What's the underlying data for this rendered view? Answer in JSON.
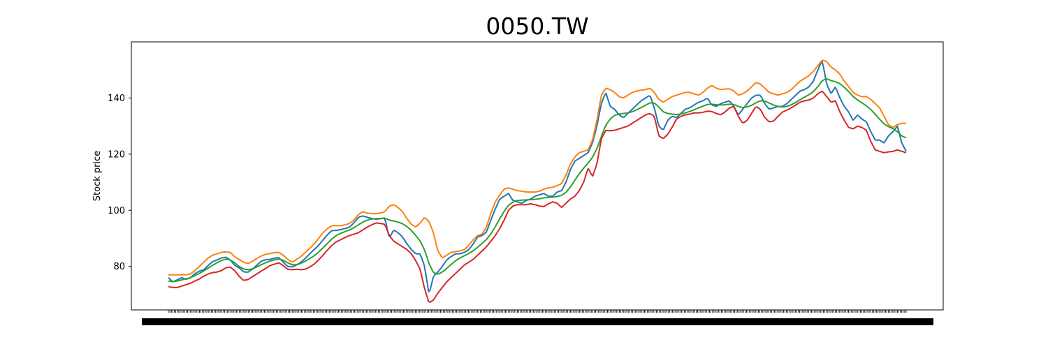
{
  "chart_data": {
    "type": "line",
    "title": "0050.TW",
    "xlabel": "",
    "ylabel": "Stock price",
    "ylim": [
      64.5,
      160
    ],
    "y_ticks": [
      80,
      100,
      120,
      140
    ],
    "x_tick_labels_note": "dense, overlapping date labels (unreadable)",
    "legend": "none",
    "grid": false,
    "n_points": 500,
    "series": [
      {
        "color": "#1f77b4",
        "values": [
          76.0,
          74.5,
          75.2,
          76.0,
          75.4,
          76.0,
          77.4,
          78.3,
          78.8,
          80.3,
          81.7,
          82.3,
          83.0,
          83.3,
          82.3,
          80.4,
          79.5,
          78.1,
          77.9,
          79.0,
          80.4,
          81.8,
          82.4,
          82.5,
          82.9,
          83.2,
          81.5,
          80.0,
          79.8,
          80.5,
          81.5,
          82.9,
          84.5,
          86.0,
          87.5,
          89.4,
          91.3,
          92.8,
          92.8,
          93.1,
          93.5,
          94.0,
          95.5,
          97.5,
          98.0,
          97.5,
          97.1,
          96.8,
          97.0,
          97.3,
          90.0,
          93.0,
          92.0,
          90.5,
          88.0,
          86.0,
          84.5,
          84.5,
          80.0,
          70.0,
          76.5,
          78.0,
          80.0,
          82.3,
          83.5,
          84.5,
          84.5,
          85.0,
          86.0,
          88.0,
          90.5,
          91.0,
          92.3,
          96.5,
          100.5,
          104.0,
          105.0,
          106.0,
          103.5,
          103.0,
          102.5,
          103.5,
          104.0,
          105.0,
          105.5,
          106.0,
          105.0,
          105.0,
          106.5,
          107.0,
          110.0,
          114.5,
          117.5,
          118.5,
          119.5,
          120.5,
          124.0,
          130.0,
          138.0,
          142.0,
          137.0,
          136.0,
          134.0,
          133.0,
          134.5,
          136.0,
          137.5,
          139.0,
          140.0,
          141.0,
          136.5,
          130.0,
          128.5,
          132.0,
          133.5,
          133.0,
          134.5,
          136.0,
          136.5,
          137.5,
          138.5,
          139.0,
          140.0,
          137.5,
          137.0,
          138.0,
          138.5,
          139.0,
          137.0,
          134.0,
          136.0,
          138.0,
          140.0,
          141.0,
          141.0,
          138.0,
          136.0,
          136.5,
          137.0,
          137.0,
          138.0,
          139.5,
          141.0,
          142.5,
          143.0,
          144.0,
          146.0,
          150.0,
          153.5,
          145.0,
          141.5,
          144.0,
          140.0,
          137.0,
          135.0,
          132.0,
          134.0,
          132.5,
          131.5,
          128.0,
          125.0,
          125.0,
          124.0,
          126.5,
          128.0,
          130.0,
          124.0,
          121.0
        ]
      },
      {
        "color": "#ff7f0e",
        "values": [
          77.0,
          77.0,
          77.0,
          77.0,
          77.0,
          77.3,
          78.5,
          80.0,
          81.5,
          83.0,
          84.0,
          84.5,
          85.0,
          85.2,
          85.0,
          83.5,
          82.5,
          81.5,
          81.0,
          81.8,
          82.8,
          83.7,
          84.3,
          84.6,
          84.9,
          85.0,
          84.0,
          82.5,
          81.5,
          82.5,
          83.5,
          85.0,
          86.5,
          88.0,
          90.0,
          92.0,
          93.5,
          94.5,
          94.5,
          94.5,
          94.8,
          95.3,
          96.5,
          98.5,
          99.5,
          99.0,
          98.8,
          98.8,
          99.0,
          99.5,
          101.5,
          102.0,
          101.0,
          99.5,
          97.0,
          95.0,
          94.0,
          95.5,
          97.5,
          96.0,
          92.0,
          85.5,
          83.0,
          84.0,
          85.0,
          85.3,
          85.5,
          86.0,
          87.5,
          89.5,
          91.0,
          91.5,
          94.0,
          99.0,
          103.0,
          105.5,
          107.5,
          108.0,
          107.5,
          107.0,
          106.8,
          106.5,
          106.5,
          106.5,
          106.8,
          107.5,
          108.0,
          108.2,
          108.8,
          109.5,
          112.5,
          116.5,
          119.0,
          120.5,
          121.0,
          121.5,
          125.0,
          132.0,
          141.0,
          143.5,
          143.0,
          142.0,
          140.5,
          140.0,
          141.0,
          142.0,
          142.5,
          142.8,
          143.0,
          143.5,
          142.0,
          139.5,
          138.5,
          139.5,
          140.5,
          141.0,
          141.5,
          142.0,
          142.0,
          141.5,
          141.0,
          142.0,
          143.5,
          144.5,
          143.5,
          143.0,
          143.2,
          143.3,
          142.5,
          141.0,
          141.5,
          142.5,
          144.0,
          145.5,
          145.0,
          143.5,
          142.0,
          141.5,
          141.0,
          141.5,
          142.0,
          143.0,
          144.5,
          146.0,
          147.0,
          148.0,
          149.5,
          151.5,
          153.5,
          153.0,
          151.0,
          150.0,
          148.5,
          146.0,
          144.0,
          142.0,
          141.0,
          140.5,
          140.5,
          139.5,
          138.0,
          136.5,
          133.5,
          130.5,
          129.5,
          130.5,
          131.0,
          131.0
        ]
      },
      {
        "color": "#2ca02c",
        "values": [
          74.8,
          74.6,
          74.8,
          75.2,
          75.6,
          76.0,
          76.7,
          77.5,
          78.4,
          79.4,
          80.4,
          81.3,
          82.1,
          82.6,
          82.3,
          81.3,
          80.0,
          79.1,
          78.8,
          79.1,
          79.8,
          80.6,
          81.3,
          81.9,
          82.3,
          82.6,
          82.2,
          81.3,
          80.6,
          80.6,
          81.1,
          81.9,
          82.8,
          83.8,
          85.1,
          86.6,
          88.2,
          89.8,
          91.0,
          91.8,
          92.4,
          93.0,
          93.8,
          94.8,
          95.8,
          96.5,
          96.9,
          97.0,
          97.1,
          97.2,
          96.5,
          96.2,
          95.8,
          95.2,
          94.2,
          92.8,
          91.0,
          89.0,
          85.8,
          81.0,
          77.8,
          77.2,
          78.0,
          79.3,
          80.7,
          82.0,
          83.0,
          83.8,
          84.6,
          85.6,
          86.8,
          88.2,
          89.6,
          91.6,
          94.2,
          97.0,
          99.6,
          101.8,
          102.9,
          103.5,
          103.6,
          103.7,
          103.8,
          103.9,
          104.1,
          104.4,
          104.6,
          104.7,
          104.9,
          105.3,
          106.4,
          108.3,
          110.7,
          113.0,
          115.0,
          116.8,
          118.9,
          122.0,
          126.2,
          130.3,
          132.5,
          133.8,
          134.3,
          134.5,
          134.7,
          135.1,
          135.8,
          136.6,
          137.4,
          138.3,
          138.2,
          136.8,
          135.1,
          134.5,
          134.3,
          134.1,
          134.3,
          134.7,
          135.2,
          135.8,
          136.5,
          137.1,
          137.7,
          137.8,
          137.6,
          137.5,
          137.6,
          137.8,
          137.7,
          137.0,
          136.6,
          136.8,
          137.4,
          138.3,
          139.0,
          138.9,
          138.2,
          137.5,
          137.0,
          136.8,
          137.0,
          137.6,
          138.4,
          139.4,
          140.3,
          141.2,
          142.3,
          144.0,
          146.2,
          146.9,
          146.2,
          145.8,
          145.1,
          143.8,
          142.3,
          140.5,
          139.3,
          138.3,
          137.2,
          135.9,
          134.2,
          132.4,
          130.8,
          129.8,
          129.1,
          128.0,
          126.5,
          125.8
        ]
      },
      {
        "color": "#d62728",
        "values": [
          72.8,
          72.5,
          72.5,
          73.0,
          73.5,
          74.0,
          74.8,
          75.5,
          76.5,
          77.3,
          77.8,
          78.0,
          78.5,
          79.5,
          79.8,
          78.5,
          76.5,
          75.0,
          75.3,
          76.3,
          77.3,
          78.3,
          79.3,
          80.3,
          80.8,
          81.3,
          80.3,
          79.0,
          78.8,
          79.0,
          78.8,
          79.0,
          79.8,
          80.8,
          82.3,
          84.0,
          85.8,
          87.5,
          88.8,
          89.5,
          90.3,
          91.0,
          91.5,
          92.0,
          93.0,
          94.0,
          94.8,
          95.5,
          95.3,
          95.0,
          91.0,
          89.0,
          88.0,
          87.0,
          86.0,
          84.5,
          82.0,
          79.0,
          72.0,
          67.0,
          68.0,
          70.5,
          72.5,
          74.5,
          76.0,
          77.5,
          79.0,
          80.5,
          81.5,
          82.5,
          84.0,
          85.5,
          87.0,
          89.0,
          91.0,
          93.5,
          96.5,
          100.0,
          101.5,
          102.0,
          102.0,
          102.0,
          102.3,
          102.0,
          101.5,
          101.3,
          102.3,
          103.0,
          102.5,
          101.0,
          102.5,
          104.0,
          105.0,
          107.0,
          110.0,
          115.0,
          112.0,
          116.5,
          125.5,
          128.5,
          128.3,
          128.5,
          129.0,
          129.5,
          130.0,
          131.0,
          132.0,
          133.0,
          134.0,
          134.5,
          133.5,
          126.5,
          125.5,
          127.0,
          129.5,
          132.5,
          133.5,
          134.0,
          134.3,
          134.7,
          134.7,
          134.9,
          135.3,
          135.2,
          134.5,
          134.0,
          135.0,
          136.5,
          137.0,
          133.5,
          131.0,
          132.0,
          134.5,
          137.0,
          136.0,
          133.0,
          131.5,
          131.8,
          133.5,
          135.0,
          135.7,
          136.5,
          137.5,
          138.5,
          139.0,
          139.3,
          140.0,
          141.5,
          142.5,
          140.5,
          138.5,
          139.0,
          135.0,
          132.0,
          129.5,
          129.0,
          130.0,
          129.5,
          128.5,
          124.5,
          121.5,
          121.0,
          120.5,
          120.8,
          121.0,
          121.5,
          121.0,
          120.5
        ]
      }
    ]
  }
}
